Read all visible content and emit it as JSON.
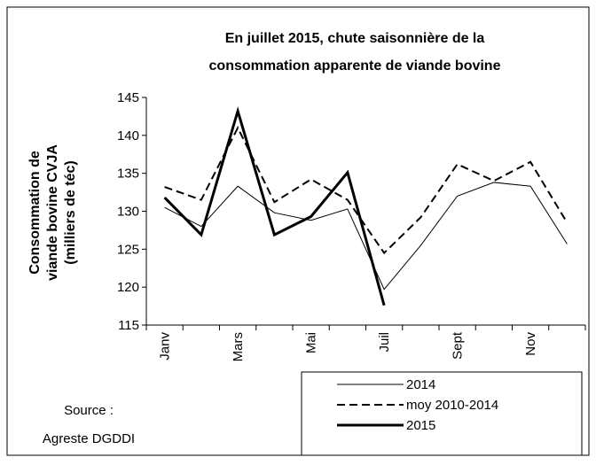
{
  "chart_data": {
    "type": "line",
    "title": [
      "En juillet 2015,  chute saisonnière de la",
      "consommation apparente de viande bovine"
    ],
    "y_label": [
      "Consommation de",
      "viande bovine CVJA",
      "(milliers de téc)"
    ],
    "categories": [
      "Janv",
      null,
      "Mars",
      null,
      "Mai",
      null,
      "Juil",
      null,
      "Sept",
      null,
      "Nov",
      null
    ],
    "series": [
      {
        "name": "2014",
        "color": "#000000",
        "style": "thin",
        "values": [
          130.5,
          128,
          133.3,
          129.8,
          128.8,
          130.3,
          119.7,
          125.5,
          132,
          133.8,
          133.3,
          125.7
        ]
      },
      {
        "name": "moy 2010-2014",
        "color": "#000000",
        "style": "dashed",
        "values": [
          133.2,
          131.5,
          141,
          131.2,
          134.2,
          131.5,
          124.5,
          129.2,
          136.2,
          134,
          136.5,
          128.5
        ]
      },
      {
        "name": "2015",
        "color": "#000000",
        "style": "thick",
        "values": [
          131.8,
          126.9,
          143.2,
          126.9,
          129.3,
          135.1,
          117.6,
          null,
          null,
          null,
          null,
          null
        ]
      }
    ],
    "ylim": [
      115,
      145
    ],
    "yticks": [
      115,
      120,
      125,
      130,
      135,
      140,
      145
    ],
    "source": [
      "Source :",
      "Agreste DGDDI"
    ]
  }
}
